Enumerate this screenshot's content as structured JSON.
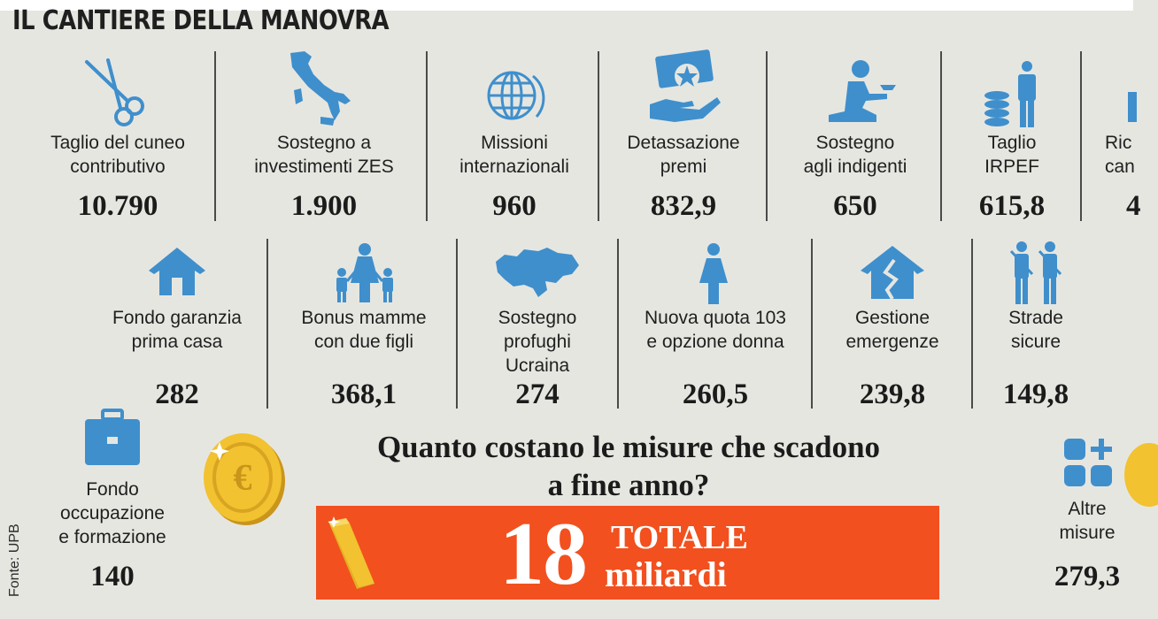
{
  "title": "IL CANTIERE DELLA MANOVRA",
  "source": "Fonte: UPB",
  "colors": {
    "icon": "#3f8fcc",
    "accent": "#f2501e",
    "coin": "#f2c230",
    "background": "#e6e6e1"
  },
  "row1": [
    {
      "label": "Taglio del cuneo\ncontributivo",
      "value": "10.790",
      "icon": "scissors-icon"
    },
    {
      "label": "Sostegno a\ninvestimenti ZES",
      "value": "1.900",
      "icon": "italy-map-icon"
    },
    {
      "label": "Missioni\ninternazionali",
      "value": "960",
      "icon": "globe-icon"
    },
    {
      "label": "Detassazione\npremi",
      "value": "832,9",
      "icon": "hand-banknote-icon"
    },
    {
      "label": "Sostegno\nagli indigenti",
      "value": "650",
      "icon": "kneeling-beggar-icon"
    },
    {
      "label": "Taglio\nIRPEF",
      "value": "615,8",
      "icon": "coins-person-icon"
    },
    {
      "label": "Ric\ncan",
      "value": "4",
      "icon": "partial-icon"
    }
  ],
  "row2": [
    {
      "label": "Fondo garanzia\nprima casa",
      "value": "282",
      "icon": "house-icon"
    },
    {
      "label": "Bonus mamme\ncon due figli",
      "value": "368,1",
      "icon": "mother-children-icon"
    },
    {
      "label": "Sostegno\nprofughi\nUcraina",
      "value": "274",
      "icon": "ukraine-map-icon"
    },
    {
      "label": "Nuova quota 103\ne opzione donna",
      "value": "260,5",
      "icon": "woman-icon"
    },
    {
      "label": "Gestione\nemergenze",
      "value": "239,8",
      "icon": "broken-house-icon"
    },
    {
      "label": "Strade\nsicure",
      "value": "149,8",
      "icon": "soldiers-icon"
    }
  ],
  "row3": [
    {
      "label": "Fondo\noccupazione\ne formazione",
      "value": "140",
      "icon": "briefcase-icon"
    },
    {
      "label": "Altre\nmisure",
      "value": "279,3",
      "icon": "grid-plus-icon"
    }
  ],
  "question": "Quanto costano le misure che scadono\na fine anno?",
  "total": {
    "number": "18",
    "label_top": "TOTALE",
    "label_bottom": "miliardi"
  }
}
